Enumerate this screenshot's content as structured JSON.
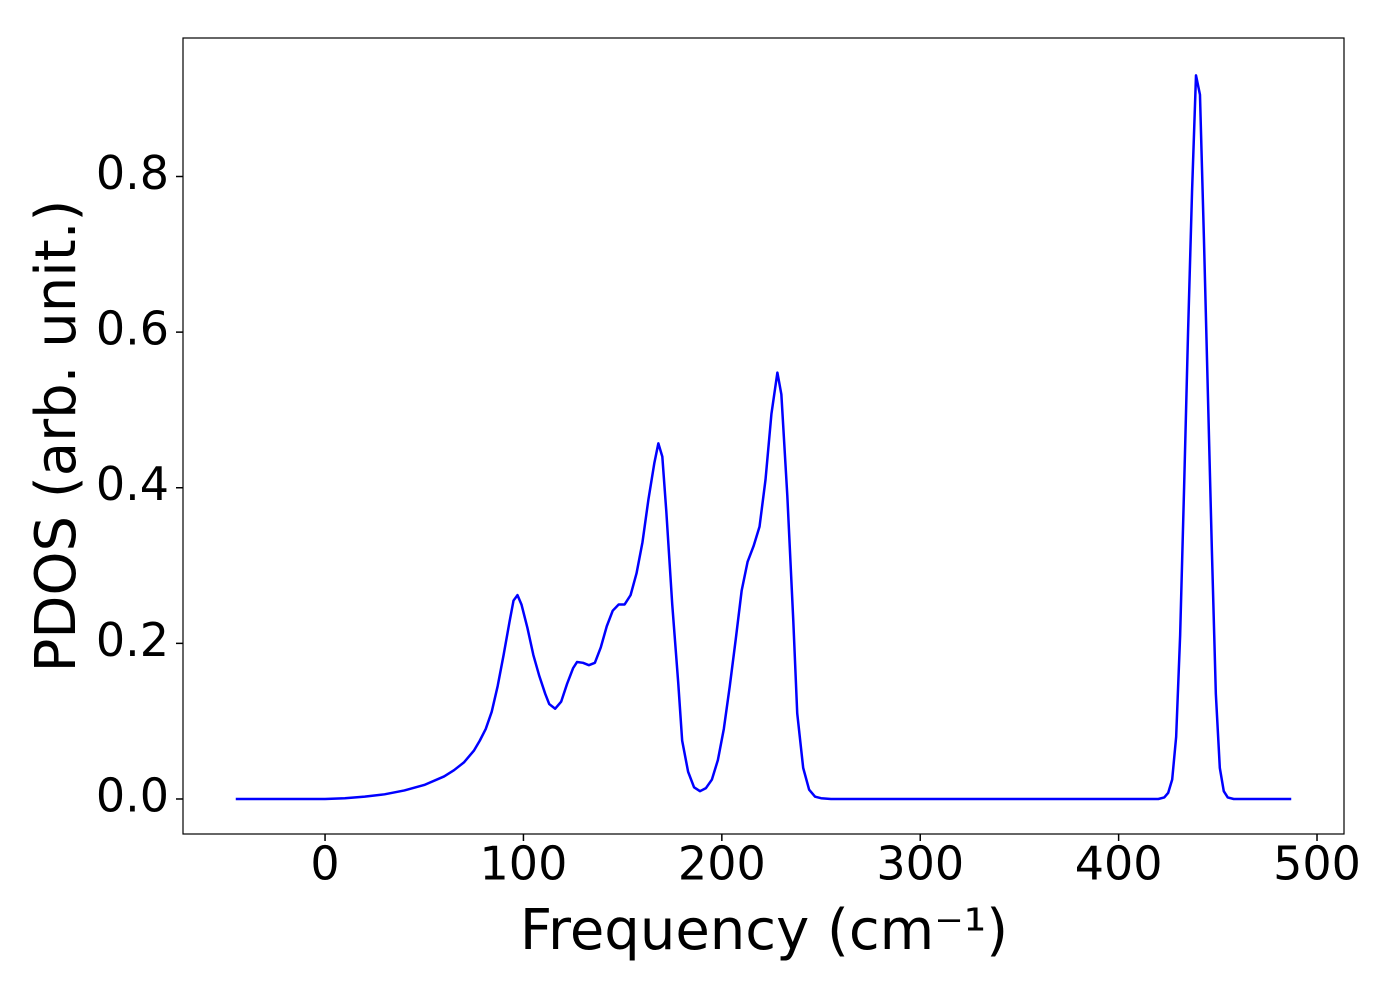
{
  "chart_data": {
    "type": "line",
    "xlabel": "Frequency (cm⁻¹)",
    "ylabel": "PDOS (arb. unit.)",
    "color": "#0000ff",
    "x": [
      -45,
      0,
      10,
      20,
      30,
      40,
      50,
      60,
      65,
      70,
      75,
      78,
      81,
      84,
      87,
      90,
      93,
      95,
      97,
      99,
      102,
      105,
      108,
      111,
      113,
      116,
      119,
      122,
      125,
      127,
      130,
      133,
      136,
      139,
      142,
      145,
      148,
      151,
      154,
      157,
      160,
      163,
      166,
      168,
      170,
      172,
      175,
      178,
      180,
      183,
      186,
      189,
      192,
      195,
      198,
      201,
      204,
      207,
      210,
      213,
      216,
      219,
      222,
      225,
      228,
      230,
      233,
      236,
      238,
      241,
      244,
      247,
      250,
      255,
      300,
      400,
      420,
      423,
      425,
      427,
      429,
      431,
      433,
      435,
      437,
      439,
      441,
      443,
      445,
      447,
      449,
      451,
      453,
      455,
      458,
      487
    ],
    "values": [
      0,
      0,
      0.001,
      0.003,
      0.006,
      0.011,
      0.018,
      0.029,
      0.037,
      0.047,
      0.062,
      0.075,
      0.09,
      0.112,
      0.145,
      0.185,
      0.228,
      0.255,
      0.262,
      0.25,
      0.22,
      0.185,
      0.158,
      0.135,
      0.122,
      0.116,
      0.125,
      0.148,
      0.168,
      0.176,
      0.175,
      0.172,
      0.175,
      0.195,
      0.222,
      0.242,
      0.25,
      0.25,
      0.262,
      0.29,
      0.33,
      0.385,
      0.432,
      0.457,
      0.44,
      0.37,
      0.25,
      0.15,
      0.075,
      0.035,
      0.015,
      0.01,
      0.014,
      0.025,
      0.05,
      0.09,
      0.145,
      0.205,
      0.268,
      0.305,
      0.325,
      0.35,
      0.41,
      0.495,
      0.548,
      0.52,
      0.39,
      0.23,
      0.11,
      0.04,
      0.012,
      0.003,
      0.001,
      0,
      0,
      0,
      0,
      0.002,
      0.008,
      0.025,
      0.08,
      0.21,
      0.4,
      0.6,
      0.78,
      0.93,
      0.905,
      0.72,
      0.52,
      0.32,
      0.135,
      0.04,
      0.01,
      0.002,
      0,
      0
    ],
    "xlim": [
      -71.6,
      513.6
    ],
    "ylim": [
      -0.045,
      0.978
    ],
    "xticks": [
      0,
      100,
      200,
      300,
      400,
      500
    ],
    "yticks": [
      {
        "value": 0,
        "label": "0.0"
      },
      0.2,
      0.4,
      0.6,
      0.8
    ],
    "grid": false
  }
}
